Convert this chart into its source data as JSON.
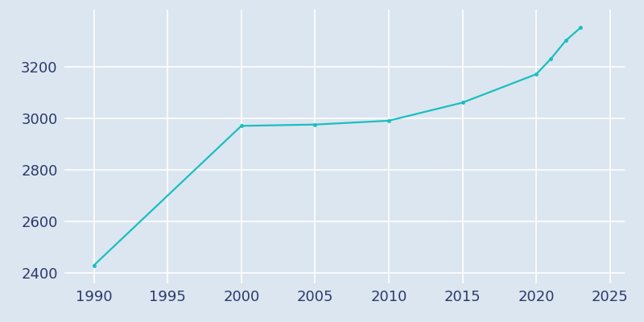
{
  "years": [
    1990,
    2000,
    2005,
    2010,
    2015,
    2020,
    2021,
    2022,
    2023
  ],
  "population": [
    2430,
    2970,
    2975,
    2990,
    3060,
    3170,
    3230,
    3300,
    3350
  ],
  "line_color": "#1ABFBF",
  "marker": "o",
  "marker_size": 2.5,
  "line_width": 1.6,
  "background_color": "#dce6f0",
  "plot_bg_color": "#dce6f0",
  "grid_color": "#ffffff",
  "xlim": [
    1988,
    2026
  ],
  "ylim": [
    2360,
    3420
  ],
  "xticks": [
    1990,
    1995,
    2000,
    2005,
    2010,
    2015,
    2020,
    2025
  ],
  "yticks": [
    2400,
    2600,
    2800,
    3000,
    3200
  ],
  "tick_color": "#2b3a6b",
  "tick_fontsize": 13,
  "spine_visible": false
}
